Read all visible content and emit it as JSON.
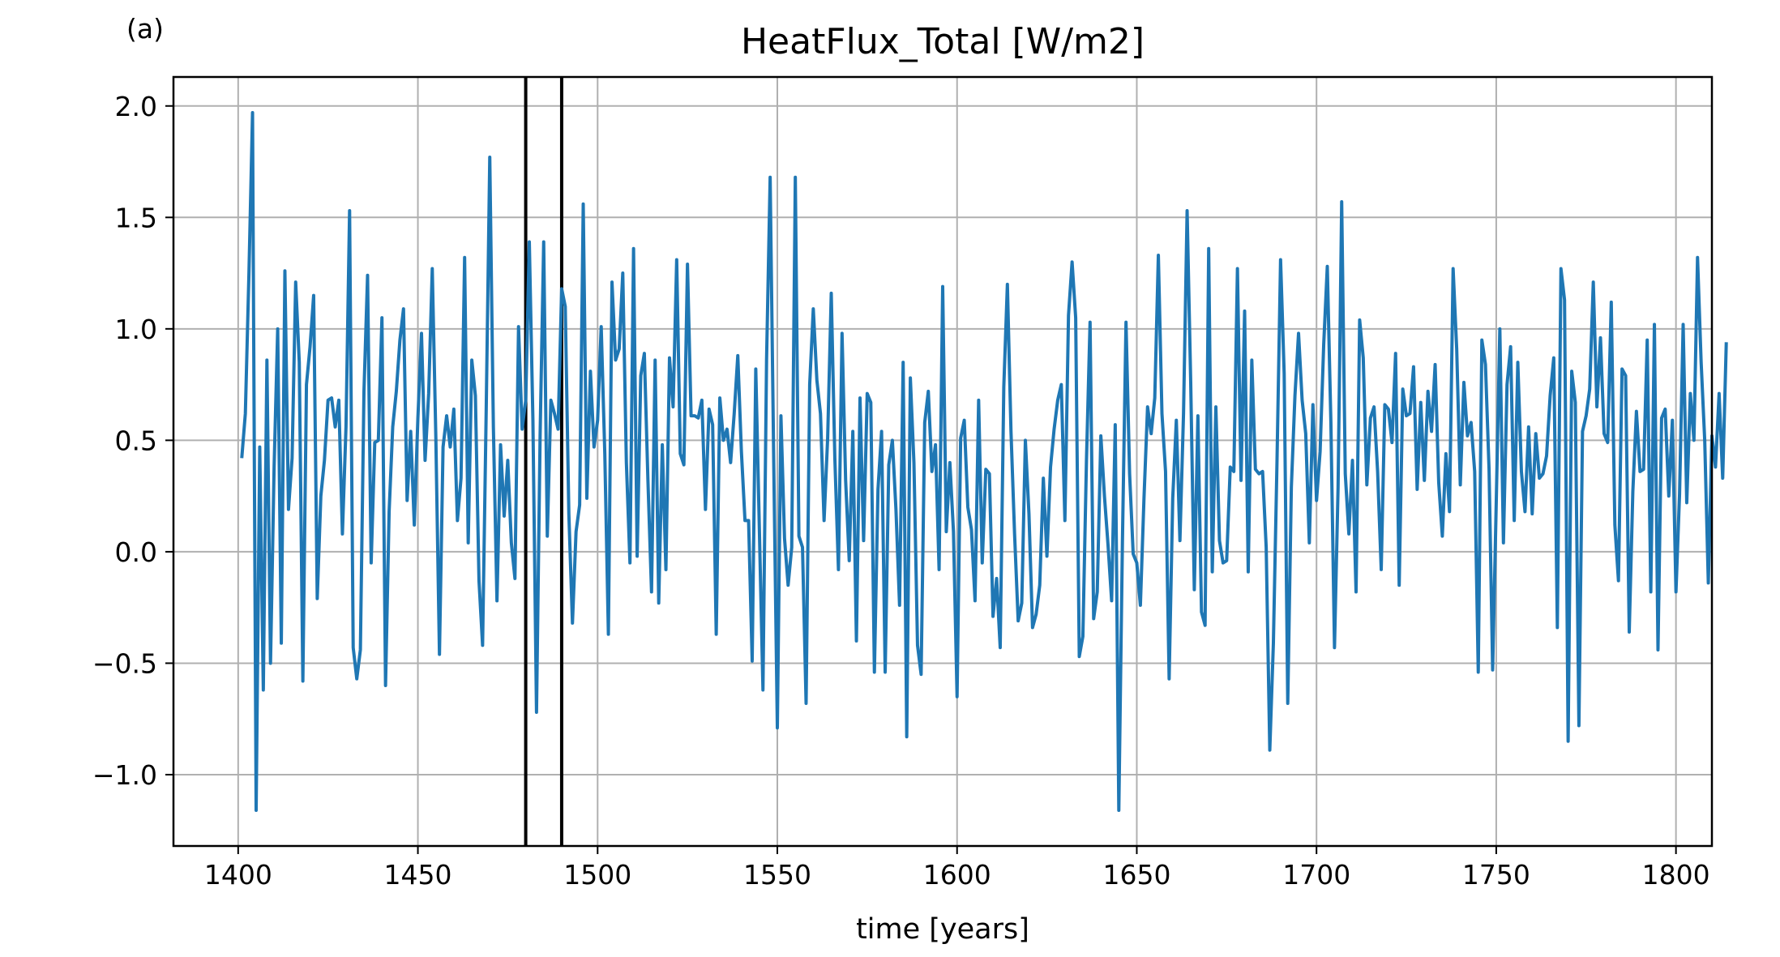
{
  "panel_label": "(a)",
  "chart_data": {
    "type": "line",
    "title": "HeatFlux_Total [W/m2]",
    "xlabel": "time [years]",
    "ylabel": "",
    "xlim": [
      1382,
      1810
    ],
    "ylim": [
      -1.32,
      2.13
    ],
    "grid": true,
    "xticks": [
      1400,
      1450,
      1500,
      1550,
      1600,
      1650,
      1700,
      1750,
      1800
    ],
    "xtick_labels": [
      "1400",
      "1450",
      "1500",
      "1550",
      "1600",
      "1650",
      "1700",
      "1750",
      "1800"
    ],
    "yticks": [
      -1.0,
      -0.5,
      0.0,
      0.5,
      1.0,
      1.5,
      2.0
    ],
    "ytick_labels": [
      "−1.0",
      "−0.5",
      "0.0",
      "0.5",
      "1.0",
      "1.5",
      "2.0"
    ],
    "vlines": [
      1480,
      1490
    ],
    "series": [
      {
        "color": "#1f77b4",
        "x_start": 1401,
        "x_step": 1,
        "values": [
          0.42,
          0.62,
          1.25,
          1.97,
          -1.16,
          0.47,
          -0.62,
          0.86,
          -0.5,
          0.38,
          1.0,
          -0.41,
          1.26,
          0.19,
          0.42,
          1.21,
          0.85,
          -0.58,
          0.75,
          0.92,
          1.15,
          -0.21,
          0.25,
          0.41,
          0.68,
          0.69,
          0.56,
          0.68,
          0.08,
          0.56,
          1.53,
          -0.43,
          -0.57,
          -0.44,
          0.72,
          1.24,
          -0.05,
          0.49,
          0.5,
          1.05,
          -0.6,
          0.18,
          0.56,
          0.72,
          0.95,
          1.09,
          0.23,
          0.54,
          0.12,
          0.6,
          0.98,
          0.41,
          0.71,
          1.27,
          0.51,
          -0.46,
          0.47,
          0.61,
          0.47,
          0.64,
          0.14,
          0.33,
          1.32,
          0.04,
          0.86,
          0.7,
          -0.13,
          -0.42,
          0.63,
          1.77,
          0.56,
          -0.22,
          0.48,
          0.16,
          0.41,
          0.04,
          -0.12,
          1.01,
          0.55,
          0.68,
          1.39,
          0.59,
          -0.72,
          0.52,
          1.39,
          0.07,
          0.68,
          0.62,
          0.55,
          1.18,
          1.1,
          0.17,
          -0.32,
          0.09,
          0.21,
          1.56,
          0.24,
          0.81,
          0.47,
          0.59,
          1.01,
          0.44,
          -0.37,
          1.21,
          0.86,
          0.91,
          1.25,
          0.4,
          -0.05,
          1.36,
          -0.02,
          0.79,
          0.89,
          0.32,
          -0.18,
          0.86,
          -0.23,
          0.48,
          -0.08,
          0.87,
          0.65,
          1.31,
          0.44,
          0.39,
          1.29,
          0.61,
          0.61,
          0.6,
          0.68,
          0.19,
          0.64,
          0.57,
          -0.37,
          0.69,
          0.5,
          0.55,
          0.4,
          0.62,
          0.88,
          0.45,
          0.14,
          0.14,
          -0.49,
          0.82,
          0.1,
          -0.62,
          0.86,
          1.68,
          0.4,
          -0.79,
          0.61,
          0.06,
          -0.15,
          0.02,
          1.68,
          0.07,
          0.02,
          -0.68,
          0.75,
          1.09,
          0.77,
          0.62,
          0.14,
          0.51,
          1.16,
          0.42,
          -0.08,
          0.98,
          0.32,
          -0.04,
          0.54,
          -0.4,
          0.69,
          0.05,
          0.71,
          0.67,
          -0.54,
          0.28,
          0.54,
          -0.54,
          0.39,
          0.5,
          0.19,
          -0.24,
          0.85,
          -0.83,
          0.78,
          0.4,
          -0.42,
          -0.55,
          0.58,
          0.72,
          0.36,
          0.48,
          -0.08,
          1.19,
          0.09,
          0.4,
          0.09,
          -0.65,
          0.51,
          0.59,
          0.2,
          0.1,
          -0.22,
          0.68,
          -0.05,
          0.37,
          0.35,
          -0.29,
          -0.12,
          -0.43,
          0.74,
          1.2,
          0.54,
          0.08,
          -0.31,
          -0.23,
          0.5,
          0.17,
          -0.34,
          -0.28,
          -0.15,
          0.33,
          -0.02,
          0.38,
          0.55,
          0.68,
          0.75,
          0.14,
          1.06,
          1.3,
          1.05,
          -0.47,
          -0.38,
          0.41,
          1.03,
          -0.3,
          -0.18,
          0.52,
          0.25,
          0.03,
          -0.22,
          0.57,
          -1.16,
          0.04,
          1.03,
          0.35,
          -0.01,
          -0.05,
          -0.24,
          0.24,
          0.65,
          0.53,
          0.69,
          1.33,
          0.62,
          0.36,
          -0.57,
          0.24,
          0.59,
          0.05,
          0.62,
          1.53,
          0.76,
          -0.17,
          0.61,
          -0.27,
          -0.33,
          1.36,
          -0.09,
          0.65,
          0.05,
          -0.05,
          -0.04,
          0.38,
          0.36,
          1.27,
          0.32,
          1.08,
          -0.09,
          0.86,
          0.37,
          0.35,
          0.36,
          0.02,
          -0.89,
          -0.41,
          0.4,
          1.31,
          0.8,
          -0.68,
          0.29,
          0.7,
          0.98,
          0.68,
          0.53,
          0.04,
          0.66,
          0.23,
          0.45,
          0.93,
          1.28,
          0.58,
          -0.43,
          0.29,
          1.57,
          0.35,
          0.08,
          0.41,
          -0.18,
          1.04,
          0.87,
          0.3,
          0.6,
          0.65,
          0.36,
          -0.08,
          0.66,
          0.64,
          0.49,
          0.89,
          -0.15,
          0.73,
          0.61,
          0.62,
          0.83,
          0.28,
          0.67,
          0.32,
          0.72,
          0.54,
          0.84,
          0.31,
          0.07,
          0.44,
          0.18,
          1.27,
          0.91,
          0.3,
          0.76,
          0.52,
          0.58,
          0.36,
          -0.54,
          0.95,
          0.84,
          0.37,
          -0.53,
          0.22,
          1.0,
          0.04,
          0.75,
          0.92,
          0.14,
          0.85,
          0.36,
          0.18,
          0.56,
          0.17,
          0.53,
          0.33,
          0.35,
          0.43,
          0.7,
          0.87,
          -0.34,
          1.27,
          1.13,
          -0.85,
          0.81,
          0.67,
          -0.78,
          0.54,
          0.61,
          0.73,
          1.21,
          0.65,
          0.96,
          0.53,
          0.49,
          1.12,
          0.12,
          -0.13,
          0.82,
          0.79,
          -0.36,
          0.27,
          0.63,
          0.36,
          0.37,
          0.95,
          -0.18,
          1.02,
          -0.44,
          0.6,
          0.64,
          0.25,
          0.59,
          -0.18,
          0.26,
          1.02,
          0.22,
          0.71,
          0.5,
          1.32,
          0.85,
          0.5,
          -0.14,
          0.52,
          0.38,
          0.71,
          0.33,
          0.94
        ]
      }
    ]
  }
}
